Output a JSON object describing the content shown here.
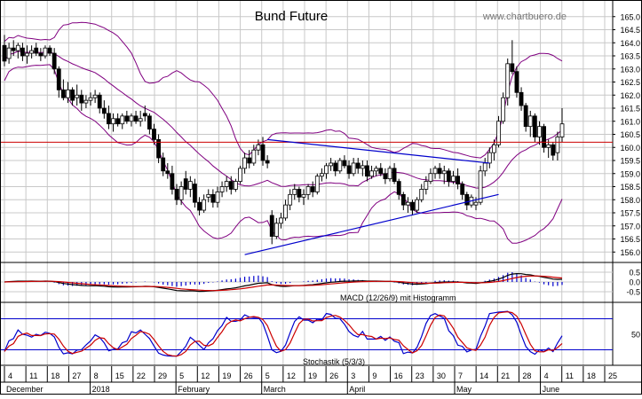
{
  "chart_data": {
    "type": "candlestick",
    "title": "Bund Future",
    "watermark": "www.chartbuero.de",
    "price_axis": {
      "ylim": [
        155.5,
        165.5
      ],
      "ticks": [
        "165.0",
        "164.5",
        "164.0",
        "163.5",
        "163.0",
        "162.5",
        "162.0",
        "161.5",
        "161.0",
        "160.5",
        "160.0",
        "159.5",
        "159.0",
        "158.5",
        "158.0",
        "157.5",
        "157.0",
        "156.5",
        "156.0"
      ]
    },
    "macd_axis": {
      "ylim": [
        -1.0,
        1.0
      ],
      "ticks": [
        "0.5",
        "0.0",
        "-0.5"
      ]
    },
    "stoch_axis": {
      "ylim": [
        -10,
        110
      ],
      "ticks": [
        "50"
      ]
    },
    "date_ticks": [
      "4",
      "11",
      "18",
      "27",
      "8",
      "15",
      "22",
      "29",
      "5",
      "12",
      "19",
      "26",
      "5",
      "12",
      "19",
      "26",
      "3",
      "9",
      "16",
      "23",
      "30",
      "7",
      "14",
      "21",
      "28",
      "4",
      "11",
      "18",
      "25"
    ],
    "month_labels": [
      "December",
      "2018",
      "February",
      "March",
      "April",
      "May",
      "June"
    ],
    "candles": [
      {
        "o": 163.9,
        "h": 164.3,
        "l": 163.1,
        "c": 163.3
      },
      {
        "o": 163.4,
        "h": 164.0,
        "l": 163.2,
        "c": 163.8
      },
      {
        "o": 163.8,
        "h": 164.1,
        "l": 163.5,
        "c": 163.7
      },
      {
        "o": 163.7,
        "h": 164.0,
        "l": 163.4,
        "c": 163.9
      },
      {
        "o": 163.8,
        "h": 164.0,
        "l": 163.3,
        "c": 163.5
      },
      {
        "o": 163.5,
        "h": 163.9,
        "l": 163.2,
        "c": 163.6
      },
      {
        "o": 163.6,
        "h": 163.9,
        "l": 163.4,
        "c": 163.7
      },
      {
        "o": 163.8,
        "h": 164.0,
        "l": 163.5,
        "c": 163.6
      },
      {
        "o": 163.6,
        "h": 163.8,
        "l": 163.3,
        "c": 163.5
      },
      {
        "o": 163.5,
        "h": 163.9,
        "l": 163.4,
        "c": 163.8
      },
      {
        "o": 163.8,
        "h": 163.9,
        "l": 163.5,
        "c": 163.6
      },
      {
        "o": 163.6,
        "h": 163.8,
        "l": 162.8,
        "c": 163.0
      },
      {
        "o": 163.0,
        "h": 163.1,
        "l": 161.9,
        "c": 162.2
      },
      {
        "o": 162.2,
        "h": 162.6,
        "l": 161.8,
        "c": 161.9
      },
      {
        "o": 161.9,
        "h": 162.5,
        "l": 161.7,
        "c": 162.2
      },
      {
        "o": 162.2,
        "h": 162.3,
        "l": 161.6,
        "c": 161.8
      },
      {
        "o": 161.9,
        "h": 162.4,
        "l": 161.6,
        "c": 162.0
      },
      {
        "o": 162.0,
        "h": 162.2,
        "l": 161.4,
        "c": 161.7
      },
      {
        "o": 161.7,
        "h": 162.0,
        "l": 161.5,
        "c": 161.8
      },
      {
        "o": 161.8,
        "h": 162.1,
        "l": 161.6,
        "c": 161.9
      },
      {
        "o": 161.9,
        "h": 162.2,
        "l": 161.7,
        "c": 162.0
      },
      {
        "o": 162.0,
        "h": 162.1,
        "l": 161.3,
        "c": 161.5
      },
      {
        "o": 161.5,
        "h": 161.8,
        "l": 161.1,
        "c": 161.3
      },
      {
        "o": 161.3,
        "h": 161.6,
        "l": 160.7,
        "c": 160.9
      },
      {
        "o": 160.9,
        "h": 161.3,
        "l": 160.6,
        "c": 161.1
      },
      {
        "o": 161.1,
        "h": 161.3,
        "l": 160.8,
        "c": 160.9
      },
      {
        "o": 160.9,
        "h": 161.3,
        "l": 160.7,
        "c": 161.2
      },
      {
        "o": 161.2,
        "h": 161.4,
        "l": 160.9,
        "c": 161.0
      },
      {
        "o": 161.0,
        "h": 161.3,
        "l": 160.8,
        "c": 161.2
      },
      {
        "o": 161.2,
        "h": 161.4,
        "l": 160.9,
        "c": 161.0
      },
      {
        "o": 161.0,
        "h": 161.4,
        "l": 160.8,
        "c": 161.1
      },
      {
        "o": 161.3,
        "h": 161.6,
        "l": 161.0,
        "c": 161.2
      },
      {
        "o": 161.2,
        "h": 161.3,
        "l": 160.5,
        "c": 160.7
      },
      {
        "o": 160.7,
        "h": 160.9,
        "l": 160.1,
        "c": 160.3
      },
      {
        "o": 160.3,
        "h": 160.5,
        "l": 159.4,
        "c": 159.6
      },
      {
        "o": 159.6,
        "h": 159.8,
        "l": 158.9,
        "c": 159.1
      },
      {
        "o": 159.1,
        "h": 159.4,
        "l": 158.8,
        "c": 159.0
      },
      {
        "o": 159.0,
        "h": 159.3,
        "l": 158.2,
        "c": 158.4
      },
      {
        "o": 158.4,
        "h": 158.6,
        "l": 157.8,
        "c": 158.0
      },
      {
        "o": 158.0,
        "h": 158.7,
        "l": 157.8,
        "c": 158.5
      },
      {
        "o": 158.8,
        "h": 159.1,
        "l": 158.2,
        "c": 158.4
      },
      {
        "o": 158.4,
        "h": 158.9,
        "l": 158.1,
        "c": 158.7
      },
      {
        "o": 158.6,
        "h": 158.8,
        "l": 157.7,
        "c": 157.9
      },
      {
        "o": 157.9,
        "h": 158.1,
        "l": 157.4,
        "c": 157.6
      },
      {
        "o": 157.6,
        "h": 158.2,
        "l": 157.5,
        "c": 158.0
      },
      {
        "o": 158.1,
        "h": 158.4,
        "l": 157.9,
        "c": 158.2
      },
      {
        "o": 158.2,
        "h": 158.4,
        "l": 157.7,
        "c": 157.9
      },
      {
        "o": 157.9,
        "h": 158.5,
        "l": 157.7,
        "c": 158.3
      },
      {
        "o": 158.3,
        "h": 158.7,
        "l": 158.1,
        "c": 158.5
      },
      {
        "o": 158.5,
        "h": 158.9,
        "l": 158.3,
        "c": 158.7
      },
      {
        "o": 158.7,
        "h": 158.9,
        "l": 158.2,
        "c": 158.4
      },
      {
        "o": 158.4,
        "h": 158.8,
        "l": 158.3,
        "c": 158.7
      },
      {
        "o": 158.7,
        "h": 159.3,
        "l": 158.6,
        "c": 159.2
      },
      {
        "o": 159.2,
        "h": 159.8,
        "l": 159.0,
        "c": 159.6
      },
      {
        "o": 159.6,
        "h": 159.9,
        "l": 159.2,
        "c": 159.4
      },
      {
        "o": 159.4,
        "h": 160.1,
        "l": 159.3,
        "c": 159.9
      },
      {
        "o": 159.9,
        "h": 160.3,
        "l": 159.7,
        "c": 160.1
      },
      {
        "o": 160.1,
        "h": 160.4,
        "l": 159.3,
        "c": 159.5
      },
      {
        "o": 159.5,
        "h": 159.7,
        "l": 159.2,
        "c": 159.4
      },
      {
        "o": 157.4,
        "h": 157.6,
        "l": 156.3,
        "c": 156.6
      },
      {
        "o": 156.6,
        "h": 157.3,
        "l": 156.5,
        "c": 157.1
      },
      {
        "o": 157.1,
        "h": 157.5,
        "l": 156.9,
        "c": 157.3
      },
      {
        "o": 157.3,
        "h": 158.0,
        "l": 157.2,
        "c": 157.8
      },
      {
        "o": 157.8,
        "h": 158.4,
        "l": 157.6,
        "c": 158.2
      },
      {
        "o": 158.2,
        "h": 158.6,
        "l": 158.0,
        "c": 158.4
      },
      {
        "o": 158.4,
        "h": 158.5,
        "l": 157.9,
        "c": 158.1
      },
      {
        "o": 158.1,
        "h": 158.4,
        "l": 157.8,
        "c": 158.2
      },
      {
        "o": 158.2,
        "h": 158.6,
        "l": 158.0,
        "c": 158.5
      },
      {
        "o": 158.5,
        "h": 158.7,
        "l": 158.1,
        "c": 158.3
      },
      {
        "o": 158.3,
        "h": 159.0,
        "l": 158.2,
        "c": 158.9
      },
      {
        "o": 158.9,
        "h": 159.2,
        "l": 158.7,
        "c": 159.0
      },
      {
        "o": 159.0,
        "h": 159.4,
        "l": 158.8,
        "c": 159.3
      },
      {
        "o": 159.3,
        "h": 159.6,
        "l": 159.1,
        "c": 159.4
      },
      {
        "o": 159.4,
        "h": 159.5,
        "l": 158.9,
        "c": 159.1
      },
      {
        "o": 159.1,
        "h": 159.6,
        "l": 159.0,
        "c": 159.5
      },
      {
        "o": 159.5,
        "h": 159.7,
        "l": 159.2,
        "c": 159.3
      },
      {
        "o": 159.3,
        "h": 159.5,
        "l": 158.8,
        "c": 159.0
      },
      {
        "o": 159.0,
        "h": 159.6,
        "l": 158.9,
        "c": 159.4
      },
      {
        "o": 159.4,
        "h": 159.6,
        "l": 159.0,
        "c": 159.2
      },
      {
        "o": 159.2,
        "h": 159.5,
        "l": 158.9,
        "c": 159.3
      },
      {
        "o": 159.3,
        "h": 159.5,
        "l": 158.7,
        "c": 158.9
      },
      {
        "o": 158.9,
        "h": 159.3,
        "l": 158.8,
        "c": 159.1
      },
      {
        "o": 159.1,
        "h": 159.3,
        "l": 158.9,
        "c": 159.2
      },
      {
        "o": 159.2,
        "h": 159.4,
        "l": 158.9,
        "c": 159.0
      },
      {
        "o": 159.0,
        "h": 159.2,
        "l": 158.6,
        "c": 158.8
      },
      {
        "o": 158.8,
        "h": 159.3,
        "l": 158.7,
        "c": 159.2
      },
      {
        "o": 159.2,
        "h": 159.4,
        "l": 158.6,
        "c": 158.7
      },
      {
        "o": 158.7,
        "h": 158.8,
        "l": 158.0,
        "c": 158.2
      },
      {
        "o": 158.2,
        "h": 158.3,
        "l": 157.6,
        "c": 157.8
      },
      {
        "o": 157.8,
        "h": 158.1,
        "l": 157.5,
        "c": 157.9
      },
      {
        "o": 157.9,
        "h": 158.0,
        "l": 157.4,
        "c": 157.6
      },
      {
        "o": 157.6,
        "h": 158.1,
        "l": 157.5,
        "c": 158.0
      },
      {
        "o": 158.0,
        "h": 158.6,
        "l": 157.9,
        "c": 158.4
      },
      {
        "o": 158.4,
        "h": 158.9,
        "l": 158.2,
        "c": 158.7
      },
      {
        "o": 158.7,
        "h": 159.2,
        "l": 158.6,
        "c": 159.0
      },
      {
        "o": 159.0,
        "h": 159.3,
        "l": 158.8,
        "c": 159.2
      },
      {
        "o": 159.2,
        "h": 159.4,
        "l": 158.8,
        "c": 159.0
      },
      {
        "o": 159.0,
        "h": 159.3,
        "l": 158.6,
        "c": 159.1
      },
      {
        "o": 159.1,
        "h": 159.2,
        "l": 158.5,
        "c": 158.7
      },
      {
        "o": 158.7,
        "h": 159.1,
        "l": 158.6,
        "c": 158.9
      },
      {
        "o": 158.9,
        "h": 159.2,
        "l": 158.4,
        "c": 158.6
      },
      {
        "o": 158.6,
        "h": 158.7,
        "l": 158.0,
        "c": 158.2
      },
      {
        "o": 158.2,
        "h": 158.3,
        "l": 157.6,
        "c": 157.8
      },
      {
        "o": 157.8,
        "h": 158.2,
        "l": 157.7,
        "c": 158.1
      },
      {
        "o": 157.8,
        "h": 158.1,
        "l": 157.6,
        "c": 157.9
      },
      {
        "o": 157.9,
        "h": 159.3,
        "l": 157.8,
        "c": 159.1
      },
      {
        "o": 159.1,
        "h": 159.6,
        "l": 158.9,
        "c": 159.4
      },
      {
        "o": 159.4,
        "h": 160.0,
        "l": 159.2,
        "c": 159.8
      },
      {
        "o": 159.8,
        "h": 160.3,
        "l": 159.5,
        "c": 160.1
      },
      {
        "o": 160.1,
        "h": 161.2,
        "l": 160.0,
        "c": 161.0
      },
      {
        "o": 161.0,
        "h": 162.1,
        "l": 160.9,
        "c": 161.9
      },
      {
        "o": 161.9,
        "h": 163.4,
        "l": 161.6,
        "c": 163.2
      },
      {
        "o": 163.2,
        "h": 164.1,
        "l": 162.8,
        "c": 162.9
      },
      {
        "o": 162.9,
        "h": 163.1,
        "l": 161.9,
        "c": 162.1
      },
      {
        "o": 162.1,
        "h": 162.3,
        "l": 161.4,
        "c": 161.6
      },
      {
        "o": 161.6,
        "h": 161.7,
        "l": 160.6,
        "c": 160.8
      },
      {
        "o": 160.8,
        "h": 161.4,
        "l": 160.4,
        "c": 161.2
      },
      {
        "o": 161.2,
        "h": 161.3,
        "l": 160.2,
        "c": 160.4
      },
      {
        "o": 160.4,
        "h": 161.0,
        "l": 160.1,
        "c": 160.8
      },
      {
        "o": 160.8,
        "h": 160.9,
        "l": 159.8,
        "c": 160.0
      },
      {
        "o": 160.0,
        "h": 160.3,
        "l": 159.6,
        "c": 160.1
      },
      {
        "o": 160.1,
        "h": 160.2,
        "l": 159.5,
        "c": 159.7
      },
      {
        "o": 159.8,
        "h": 160.6,
        "l": 159.5,
        "c": 160.4
      },
      {
        "o": 160.4,
        "h": 161.5,
        "l": 160.2,
        "c": 160.9
      }
    ],
    "resistance_price": 160.2,
    "trendlines": [
      {
        "from": [
          58,
          160.3
        ],
        "to": [
          107,
          159.4
        ]
      },
      {
        "from": [
          53,
          155.9
        ],
        "to": [
          109,
          158.2
        ]
      }
    ],
    "indicator_labels": {
      "macd": "MACD (12/26/9) mit Histogramm",
      "stoch": "Stochastik (5/3/3)"
    },
    "stoch_levels": [
      80,
      20
    ],
    "colors": {
      "candle": "#000000",
      "bollinger": "#800080",
      "resistance": "#cc0000",
      "trendline": "#0000cc",
      "macd": "#000000",
      "signal": "#cc0000",
      "histogram": "#0000cc",
      "stoch_k": "#0000cc",
      "stoch_d": "#cc0000"
    }
  }
}
